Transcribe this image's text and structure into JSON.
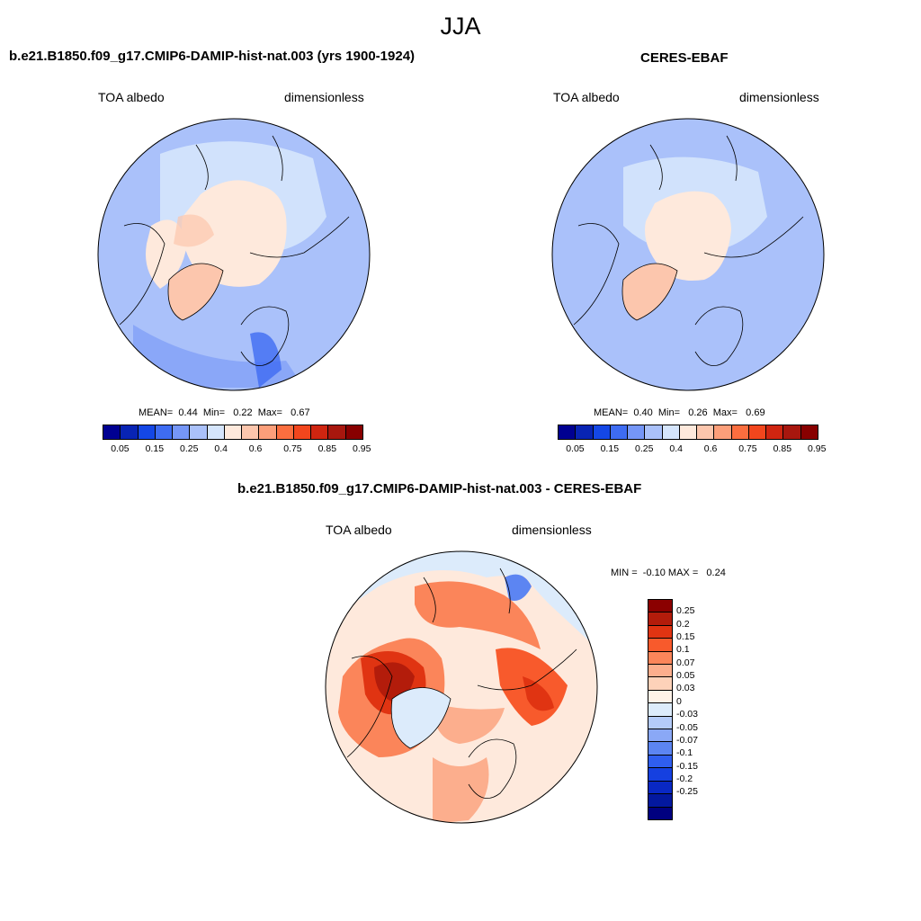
{
  "figure_title": "JJA",
  "panels": {
    "model": {
      "title": "b.e21.B1850.f09_g17.CMIP6-DAMIP-hist-nat.003 (yrs 1900-1924)",
      "left_label": "TOA albedo",
      "right_label": "dimensionless",
      "stats": {
        "mean_label": "MEAN=",
        "mean": "0.44",
        "min_label": "Min=",
        "min": "0.22",
        "max_label": "Max=",
        "max": "0.67"
      }
    },
    "obs": {
      "title": "CERES-EBAF",
      "left_label": "TOA albedo",
      "right_label": "dimensionless",
      "stats": {
        "mean_label": "MEAN=",
        "mean": "0.40",
        "min_label": "Min=",
        "min": "0.26",
        "max_label": "Max=",
        "max": "0.69"
      }
    },
    "diff": {
      "title": "b.e21.B1850.f09_g17.CMIP6-DAMIP-hist-nat.003 - CERES-EBAF",
      "left_label": "TOA albedo",
      "right_label": "dimensionless",
      "stats": {
        "min_label": "MIN =",
        "min": "-0.10",
        "max_label": "MAX =",
        "max": "0.24"
      }
    }
  },
  "colorbar_main": {
    "colors": [
      "#000091",
      "#0824b4",
      "#1447e6",
      "#3e6cf2",
      "#7596f7",
      "#aac1fa",
      "#d5e5fc",
      "#fee9dc",
      "#fcc6ad",
      "#fc9f7a",
      "#fb6e3f",
      "#f2461d",
      "#cf2510",
      "#a8170e",
      "#880000"
    ],
    "ticks": [
      "0.05",
      "0.15",
      "0.25",
      "0.4",
      "0.6",
      "0.75",
      "0.85",
      "0.95"
    ]
  },
  "colorbar_diff": {
    "colors": [
      "#8b0000",
      "#b31c0b",
      "#e03412",
      "#f85a2c",
      "#fb855a",
      "#fcae8d",
      "#fdd2b9",
      "#fef2e8",
      "#dcebfb",
      "#b4cbf9",
      "#8aa8f6",
      "#5c85f2",
      "#2f5eef",
      "#1540e0",
      "#0928c4",
      "#03189f",
      "#000080"
    ],
    "ticks": [
      "0.25",
      "0.2",
      "0.15",
      "0.1",
      "0.07",
      "0.05",
      "0.03",
      "0",
      "-0.03",
      "-0.05",
      "-0.07",
      "-0.1",
      "-0.15",
      "-0.2",
      "-0.25"
    ]
  }
}
